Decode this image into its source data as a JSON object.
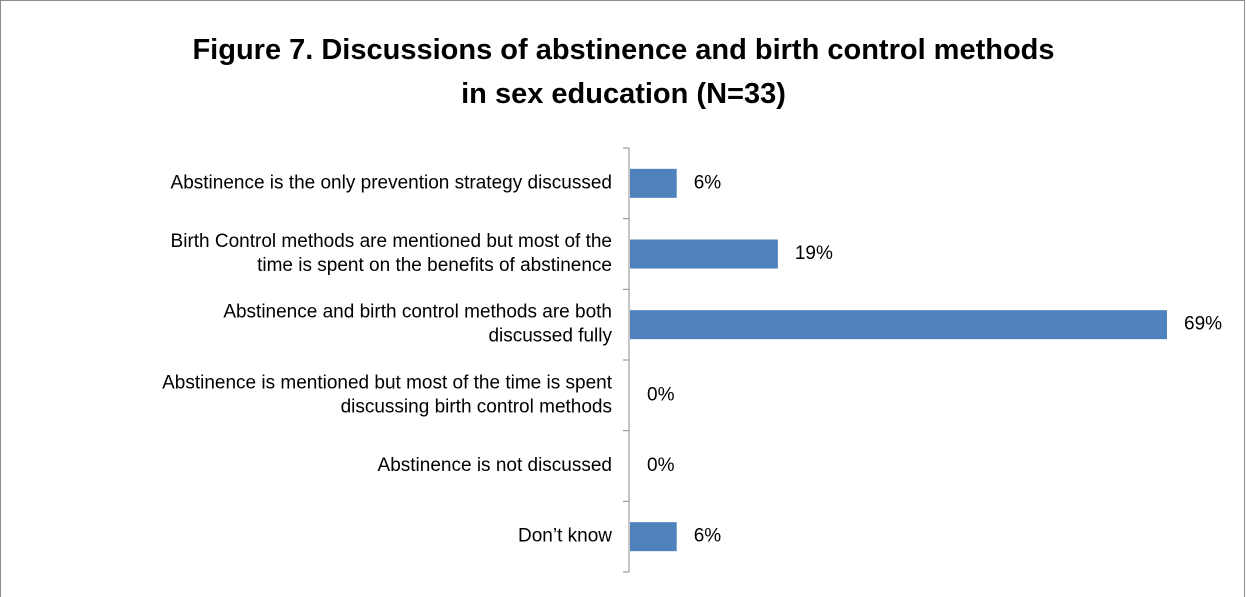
{
  "chart_data": {
    "type": "bar",
    "orientation": "horizontal",
    "title": [
      "Figure 7. Discussions of abstinence and birth control methods",
      "in sex education (N=33)"
    ],
    "categories": [
      [
        "Abstinence is the only prevention strategy discussed"
      ],
      [
        "Birth Control methods are mentioned but most of the",
        "time is spent on the benefits of abstinence"
      ],
      [
        "Abstinence and birth control methods are both",
        "discussed fully"
      ],
      [
        "Abstinence is mentioned but most of the time is spent",
        "discussing birth control methods"
      ],
      [
        "Abstinence is not discussed"
      ],
      [
        "Don’t know"
      ]
    ],
    "values": [
      6,
      19,
      69,
      0,
      0,
      6
    ],
    "data_labels": [
      "6%",
      "19%",
      "69%",
      "0%",
      "0%",
      "6%"
    ],
    "xlim": [
      0,
      69
    ],
    "bar_color": "#4f81bd",
    "grid": false,
    "legend": "none"
  }
}
